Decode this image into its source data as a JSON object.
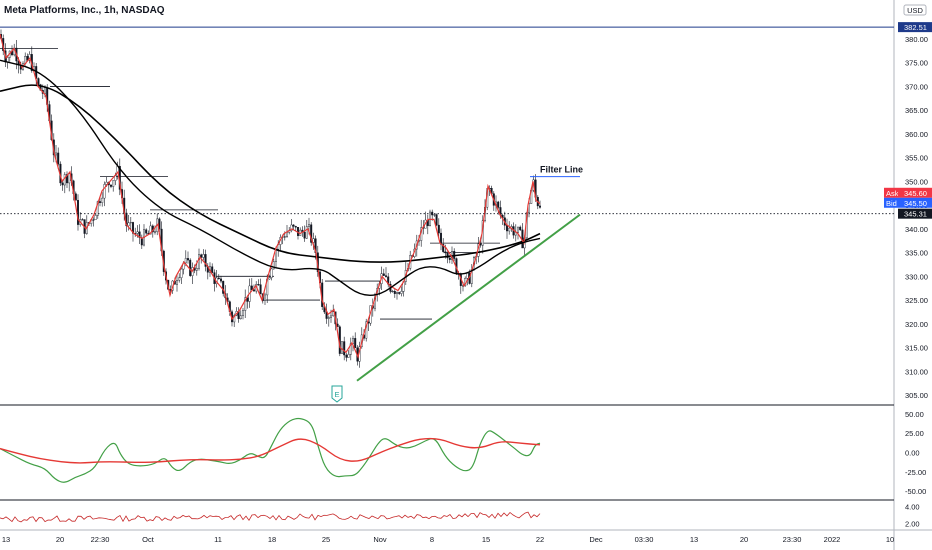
{
  "header": {
    "title": "Meta Platforms, Inc., 1h, NASDAQ",
    "currency": "USD"
  },
  "colors": {
    "up_candle": "#131722",
    "down_candle": "#131722",
    "ema": "#e53935",
    "sma": "#000000",
    "trendline": "#43a047",
    "osc_fast": "#43a047",
    "osc_slow": "#e53935",
    "sub2": "#c62828",
    "ask": "#f23645",
    "bid": "#2962ff",
    "last": "#131722",
    "top_line": "#1e3a8a"
  },
  "chart_data": [
    {
      "type": "candlestick",
      "pane": "price",
      "ylim": [
        305,
        384
      ],
      "yticks": [
        305,
        310,
        315,
        320,
        325,
        330,
        335,
        340,
        345,
        350,
        355,
        360,
        365,
        370,
        375,
        380
      ],
      "x_labels": [
        "13",
        "20",
        "22:30",
        "Oct",
        "11",
        "18",
        "25",
        "Nov",
        "8",
        "15",
        "22",
        "Dec",
        "03:30",
        "13",
        "20",
        "23:30",
        "2022",
        "10"
      ],
      "price_path": [
        [
          0,
          381
        ],
        [
          6,
          376
        ],
        [
          14,
          378
        ],
        [
          22,
          374
        ],
        [
          30,
          376
        ],
        [
          38,
          370
        ],
        [
          46,
          368
        ],
        [
          54,
          356
        ],
        [
          62,
          350
        ],
        [
          70,
          352
        ],
        [
          78,
          342
        ],
        [
          86,
          340
        ],
        [
          94,
          343
        ],
        [
          102,
          348
        ],
        [
          110,
          350
        ],
        [
          118,
          352
        ],
        [
          126,
          341
        ],
        [
          134,
          339
        ],
        [
          142,
          338
        ],
        [
          150,
          339
        ],
        [
          158,
          341
        ],
        [
          164,
          332
        ],
        [
          170,
          326
        ],
        [
          176,
          330
        ],
        [
          184,
          333
        ],
        [
          192,
          331
        ],
        [
          200,
          334
        ],
        [
          208,
          332
        ],
        [
          216,
          329
        ],
        [
          224,
          327
        ],
        [
          232,
          321
        ],
        [
          240,
          323
        ],
        [
          248,
          326
        ],
        [
          256,
          328
        ],
        [
          262,
          325
        ],
        [
          268,
          330
        ],
        [
          276,
          336
        ],
        [
          284,
          339
        ],
        [
          292,
          340
        ],
        [
          300,
          339
        ],
        [
          308,
          340
        ],
        [
          316,
          335
        ],
        [
          322,
          325
        ],
        [
          328,
          322
        ],
        [
          334,
          323
        ],
        [
          340,
          315
        ],
        [
          346,
          314
        ],
        [
          352,
          316
        ],
        [
          358,
          313
        ],
        [
          364,
          318
        ],
        [
          370,
          322
        ],
        [
          376,
          326
        ],
        [
          382,
          330
        ],
        [
          390,
          328
        ],
        [
          398,
          327
        ],
        [
          404,
          329
        ],
        [
          410,
          333
        ],
        [
          416,
          336
        ],
        [
          422,
          340
        ],
        [
          428,
          342
        ],
        [
          434,
          342
        ],
        [
          440,
          337
        ],
        [
          446,
          336
        ],
        [
          452,
          334
        ],
        [
          458,
          331
        ],
        [
          464,
          328
        ],
        [
          470,
          330
        ],
        [
          476,
          334
        ],
        [
          482,
          339
        ],
        [
          488,
          349
        ],
        [
          494,
          346
        ],
        [
          500,
          343
        ],
        [
          506,
          341
        ],
        [
          512,
          340
        ],
        [
          518,
          339
        ],
        [
          524,
          337
        ],
        [
          528,
          345
        ],
        [
          533,
          350
        ],
        [
          536,
          346
        ],
        [
          540,
          345.3
        ]
      ],
      "sma_path": [
        [
          0,
          369
        ],
        [
          40,
          371
        ],
        [
          80,
          366
        ],
        [
          120,
          358
        ],
        [
          160,
          349
        ],
        [
          200,
          343
        ],
        [
          240,
          339
        ],
        [
          280,
          335
        ],
        [
          320,
          334
        ],
        [
          360,
          333
        ],
        [
          400,
          333
        ],
        [
          440,
          334
        ],
        [
          480,
          335
        ],
        [
          520,
          337
        ],
        [
          540,
          339
        ]
      ],
      "ema_path": [
        [
          0,
          375.5
        ],
        [
          40,
          373.5
        ],
        [
          80,
          365
        ],
        [
          120,
          352
        ],
        [
          160,
          344
        ],
        [
          200,
          340
        ],
        [
          240,
          335
        ],
        [
          280,
          331
        ],
        [
          320,
          332
        ],
        [
          340,
          329
        ],
        [
          360,
          326
        ],
        [
          380,
          326
        ],
        [
          400,
          329
        ],
        [
          420,
          332
        ],
        [
          440,
          332
        ],
        [
          460,
          330
        ],
        [
          480,
          332
        ],
        [
          500,
          335
        ],
        [
          520,
          337
        ],
        [
          540,
          338
        ]
      ],
      "trendline": [
        [
          357,
          308
        ],
        [
          580,
          343
        ]
      ],
      "filter_line": {
        "label": "Filter Line",
        "y": 351,
        "x_start": 530,
        "x_end": 580
      },
      "horizontal_levels": [
        {
          "y": 378,
          "x_start": 0,
          "x_end": 58
        },
        {
          "y": 370,
          "x_start": 50,
          "x_end": 110
        },
        {
          "y": 351,
          "x_start": 100,
          "x_end": 168
        },
        {
          "y": 344,
          "x_start": 150,
          "x_end": 218
        },
        {
          "y": 330,
          "x_start": 216,
          "x_end": 274
        },
        {
          "y": 325,
          "x_start": 262,
          "x_end": 320
        },
        {
          "y": 329,
          "x_start": 325,
          "x_end": 382
        },
        {
          "y": 321,
          "x_start": 380,
          "x_end": 432
        },
        {
          "y": 337,
          "x_start": 430,
          "x_end": 500
        },
        {
          "y": 335,
          "x_start": 444,
          "x_end": 478
        }
      ],
      "price_tags": [
        {
          "label": "",
          "value": "382.51",
          "y": 382.5,
          "kind": "top"
        },
        {
          "label": "Ask",
          "value": "345.60",
          "y": 347.6,
          "kind": "ask"
        },
        {
          "label": "Bid",
          "value": "345.50",
          "y": 345.5,
          "kind": "bid"
        },
        {
          "label": "",
          "value": "345.31",
          "y": 343.2,
          "kind": "last"
        }
      ],
      "events": [
        {
          "label": "E",
          "x": 337
        }
      ]
    },
    {
      "type": "line",
      "pane": "oscillator",
      "ylim": [
        -55,
        55
      ],
      "ytick_labels": [
        {
          "value": 50,
          "label": "50.00"
        },
        {
          "value": 25,
          "label": "25.00"
        },
        {
          "value": 0,
          "label": "0.00"
        },
        {
          "value": -25,
          "label": "-25.00"
        },
        {
          "value": -50,
          "label": "-50.00"
        }
      ],
      "series": [
        {
          "points": [
            [
              0,
              5
            ],
            [
              15,
              -5
            ],
            [
              30,
              -15
            ],
            [
              45,
              -20
            ],
            [
              55,
              -35
            ],
            [
              65,
              -40
            ],
            [
              75,
              -32
            ],
            [
              85,
              -28
            ],
            [
              95,
              -20
            ],
            [
              105,
              5
            ],
            [
              115,
              15
            ],
            [
              120,
              -2
            ],
            [
              128,
              -15
            ],
            [
              140,
              -18
            ],
            [
              155,
              -15
            ],
            [
              165,
              -5
            ],
            [
              172,
              -20
            ],
            [
              180,
              -25
            ],
            [
              190,
              -12
            ],
            [
              200,
              -8
            ],
            [
              210,
              -10
            ],
            [
              220,
              -12
            ],
            [
              230,
              -15
            ],
            [
              240,
              -10
            ],
            [
              250,
              0
            ],
            [
              258,
              -5
            ],
            [
              265,
              -8
            ],
            [
              272,
              10
            ],
            [
              280,
              30
            ],
            [
              290,
              42
            ],
            [
              300,
              45
            ],
            [
              312,
              38
            ],
            [
              318,
              8
            ],
            [
              325,
              -20
            ],
            [
              335,
              -32
            ],
            [
              345,
              -30
            ],
            [
              355,
              -30
            ],
            [
              362,
              -20
            ],
            [
              370,
              -5
            ],
            [
              378,
              12
            ],
            [
              385,
              20
            ],
            [
              395,
              10
            ],
            [
              405,
              5
            ],
            [
              415,
              8
            ],
            [
              425,
              15
            ],
            [
              435,
              20
            ],
            [
              445,
              -5
            ],
            [
              455,
              -18
            ],
            [
              465,
              -25
            ],
            [
              473,
              -20
            ],
            [
              480,
              12
            ],
            [
              488,
              30
            ],
            [
              495,
              25
            ],
            [
              505,
              15
            ],
            [
              515,
              5
            ],
            [
              522,
              -3
            ],
            [
              530,
              -5
            ],
            [
              535,
              10
            ],
            [
              540,
              12
            ]
          ]
        },
        {
          "points": [
            [
              0,
              5
            ],
            [
              20,
              -2
            ],
            [
              40,
              -8
            ],
            [
              60,
              -12
            ],
            [
              80,
              -14
            ],
            [
              100,
              -12
            ],
            [
              120,
              -12
            ],
            [
              140,
              -13
            ],
            [
              160,
              -12
            ],
            [
              180,
              -10
            ],
            [
              200,
              -9
            ],
            [
              220,
              -10
            ],
            [
              240,
              -9
            ],
            [
              260,
              -5
            ],
            [
              280,
              8
            ],
            [
              300,
              20
            ],
            [
              320,
              10
            ],
            [
              340,
              -10
            ],
            [
              360,
              -12
            ],
            [
              380,
              0
            ],
            [
              400,
              10
            ],
            [
              420,
              18
            ],
            [
              440,
              18
            ],
            [
              460,
              8
            ],
            [
              480,
              5
            ],
            [
              500,
              15
            ],
            [
              520,
              12
            ],
            [
              540,
              10
            ]
          ]
        }
      ]
    },
    {
      "type": "line",
      "pane": "sub-indicator",
      "ylim": [
        1.5,
        4.5
      ],
      "ytick_labels": [
        {
          "value": 4,
          "label": "4.00"
        },
        {
          "value": 2,
          "label": "2.00"
        }
      ],
      "series": [
        {
          "start": 2.5,
          "end": 3.0,
          "noise": 0.35
        }
      ]
    }
  ]
}
